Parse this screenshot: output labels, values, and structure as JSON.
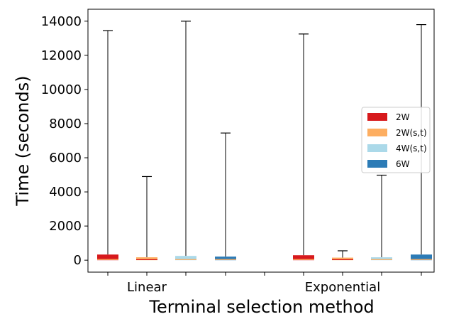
{
  "chart_data": {
    "type": "box",
    "title": "",
    "xlabel": "Terminal selection method",
    "ylabel": "Time (seconds)",
    "ylim": [
      -700,
      14700
    ],
    "yticks": [
      0,
      2000,
      4000,
      6000,
      8000,
      10000,
      12000,
      14000
    ],
    "groups": [
      "Linear",
      "Exponential"
    ],
    "legend_position": "center-right",
    "grid": false,
    "series": [
      {
        "name": "2W",
        "color": "#d7191c",
        "median_color": "#fdae61",
        "boxes": [
          {
            "group": "Linear",
            "min": 0,
            "q1": 0,
            "median": 40,
            "q3": 330,
            "max": 13450
          },
          {
            "group": "Exponential",
            "min": 0,
            "q1": 0,
            "median": 40,
            "q3": 290,
            "max": 13250
          }
        ]
      },
      {
        "name": "2W(s,t)",
        "color": "#fdae61",
        "median_color": "#d7191c",
        "boxes": [
          {
            "group": "Linear",
            "min": 0,
            "q1": 0,
            "median": 30,
            "q3": 170,
            "max": 4900
          },
          {
            "group": "Exponential",
            "min": 0,
            "q1": 0,
            "median": 30,
            "q3": 150,
            "max": 550
          }
        ]
      },
      {
        "name": "4W(s,t)",
        "color": "#abd9e9",
        "median_color": "#fdae61",
        "boxes": [
          {
            "group": "Linear",
            "min": 0,
            "q1": 0,
            "median": 40,
            "q3": 250,
            "max": 14000
          },
          {
            "group": "Exponential",
            "min": 0,
            "q1": 0,
            "median": 40,
            "q3": 170,
            "max": 4980
          }
        ]
      },
      {
        "name": "6W",
        "color": "#2c7bb6",
        "median_color": "#fdae61",
        "boxes": [
          {
            "group": "Linear",
            "min": 0,
            "q1": 0,
            "median": 40,
            "q3": 210,
            "max": 7450
          },
          {
            "group": "Exponential",
            "min": 0,
            "q1": 0,
            "median": 40,
            "q3": 330,
            "max": 13800
          }
        ]
      }
    ]
  }
}
